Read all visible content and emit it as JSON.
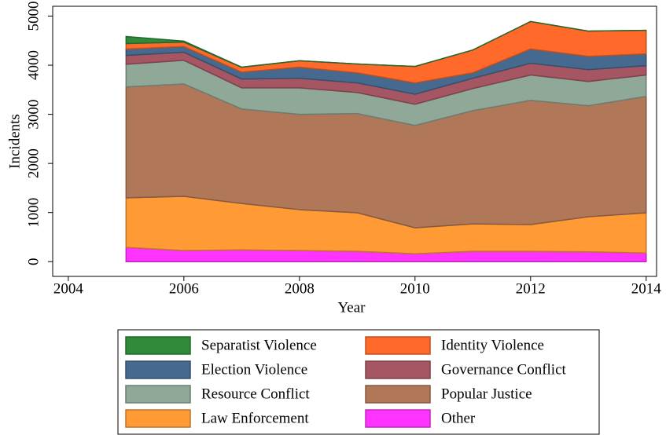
{
  "chart_data": {
    "type": "stacked-area",
    "x_label": "Year",
    "y_label": "Incidents",
    "x": [
      2005,
      2006,
      2007,
      2008,
      2009,
      2010,
      2011,
      2012,
      2013,
      2014
    ],
    "xlim": [
      2003.73,
      2014.18
    ],
    "xticks": [
      2004,
      2006,
      2008,
      2010,
      2012,
      2014
    ],
    "ylim": [
      -300,
      5200
    ],
    "yticks": [
      0,
      1000,
      2000,
      3000,
      4000,
      5000
    ],
    "series": [
      {
        "name": "Separatist Violence",
        "color": "#2f8a3a",
        "values": [
          145,
          20,
          0,
          0,
          0,
          0,
          0,
          0,
          0,
          0
        ]
      },
      {
        "name": "Identity Violence",
        "color": "#ff6a2a",
        "values": [
          110,
          90,
          100,
          130,
          180,
          335,
          465,
          560,
          515,
          480
        ]
      },
      {
        "name": "Election Violence",
        "color": "#46698f",
        "values": [
          130,
          115,
          140,
          225,
          205,
          230,
          110,
          290,
          270,
          240
        ]
      },
      {
        "name": "Governance Conflict",
        "color": "#a55662",
        "values": [
          180,
          165,
          180,
          195,
          195,
          205,
          210,
          240,
          240,
          190
        ]
      },
      {
        "name": "Resource Conflict",
        "color": "#8fa898",
        "values": [
          460,
          480,
          430,
          540,
          430,
          430,
          450,
          515,
          495,
          435
        ]
      },
      {
        "name": "Popular Justice",
        "color": "#b07858",
        "values": [
          2260,
          2290,
          1925,
          1940,
          2020,
          2085,
          2305,
          2530,
          2260,
          2370
        ]
      },
      {
        "name": "Law Enforcement",
        "color": "#ff9a35",
        "values": [
          1010,
          1105,
          945,
          835,
          785,
          530,
          560,
          545,
          715,
          820
        ]
      },
      {
        "name": "Other",
        "color": "#ff33ff",
        "values": [
          290,
          225,
          240,
          225,
          210,
          160,
          210,
          210,
          200,
          175
        ]
      }
    ]
  }
}
